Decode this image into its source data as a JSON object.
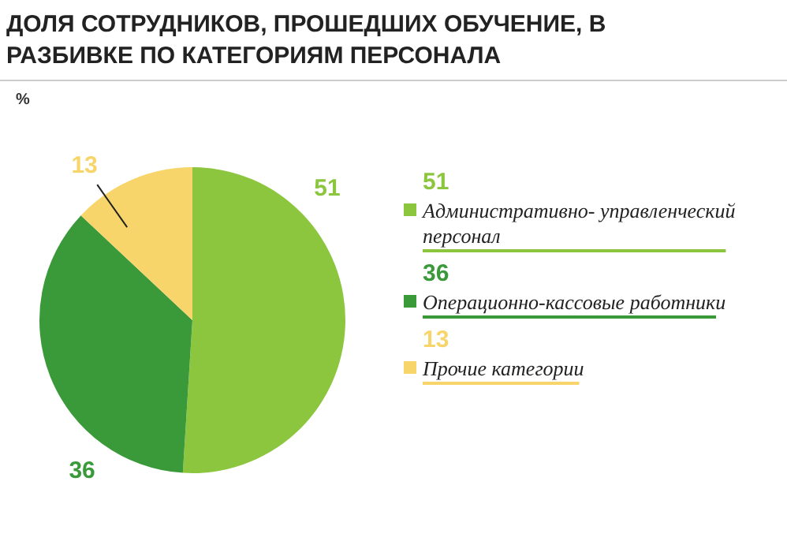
{
  "chart_data": {
    "type": "pie",
    "title": "ДОЛЯ СОТРУДНИКОВ, ПРОШЕДШИХ ОБУЧЕНИЕ, В РАЗБИВКЕ ПО КАТЕГОРИЯМ ПЕРСОНАЛА",
    "subtitle": "%",
    "categories": [
      "Административно- управленческий персонал",
      "Операционно-кассовые работники",
      "Прочие категории"
    ],
    "values": [
      51,
      36,
      13
    ],
    "colors": [
      "#8cc63f",
      "#3a9a3a",
      "#f8d56a"
    ],
    "annotations": [
      "51",
      "36",
      "13"
    ],
    "data_labels": true,
    "legend": "right"
  }
}
